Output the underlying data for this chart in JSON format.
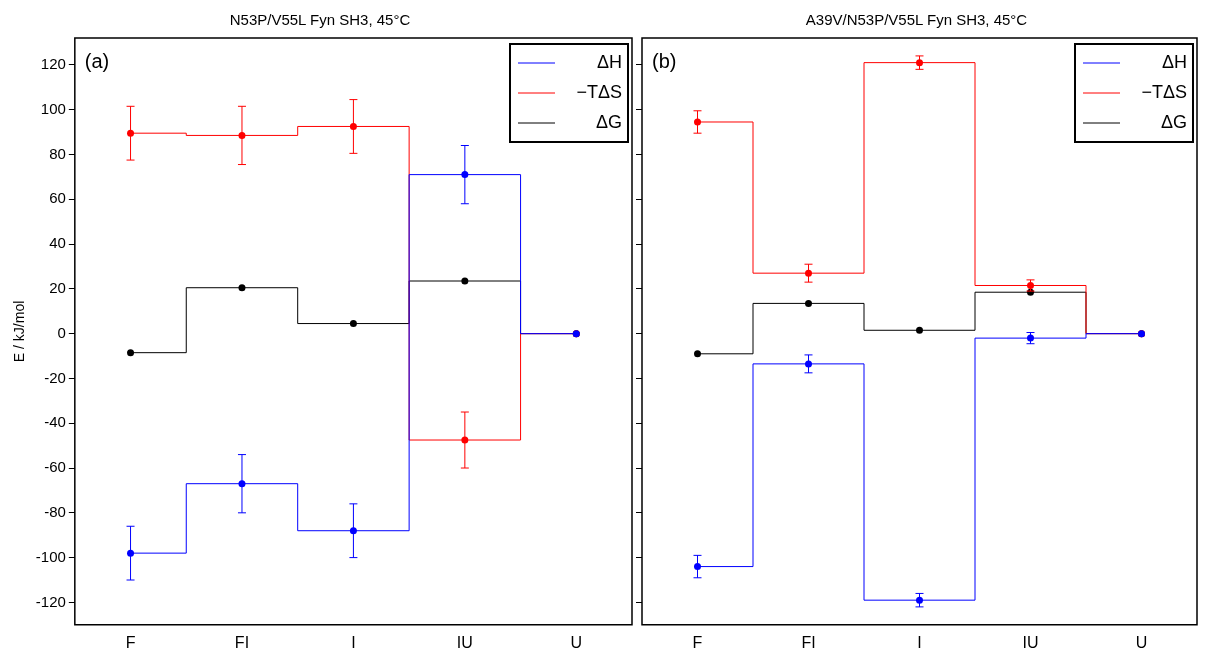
{
  "chart_data": [
    {
      "type": "step",
      "title": "N53P/V55L Fyn SH3, 45°C",
      "ylabel": "E / kJ/mol",
      "categories": [
        "F",
        "FI",
        "I",
        "IU",
        "U"
      ],
      "ylim": [
        -130,
        132
      ],
      "yticks": [
        -120,
        -100,
        -80,
        -60,
        -40,
        -20,
        0,
        20,
        40,
        60,
        80,
        100,
        120
      ],
      "grid": false,
      "legend": "top right",
      "marker": "circle",
      "line_style": "solid",
      "annotations": [
        "(a)"
      ],
      "series": [
        {
          "name": "ΔH",
          "color": "#0000ff",
          "values": [
            -98,
            -67,
            -88,
            71,
            0
          ],
          "errors": [
            12,
            13,
            12,
            13,
            null
          ]
        },
        {
          "name": "−TΔS",
          "color": "#ff0000",
          "values": [
            89.5,
            88.5,
            92.5,
            -47.5,
            0
          ],
          "errors": [
            12,
            13,
            12,
            12.5,
            null
          ]
        },
        {
          "name": "ΔG",
          "color": "#000000",
          "values": [
            -8.5,
            20.5,
            4.5,
            23.5,
            0
          ]
        }
      ]
    },
    {
      "type": "step",
      "title": "A39V/N53P/V55L Fyn SH3, 45°C",
      "categories": [
        "F",
        "FI",
        "I",
        "IU",
        "U"
      ],
      "ylim": [
        -130,
        132
      ],
      "yticks": [
        -120,
        -100,
        -80,
        -60,
        -40,
        -20,
        0,
        20,
        40,
        60,
        80,
        100,
        120
      ],
      "tick_labels": "x",
      "grid": false,
      "legend": "top right",
      "marker": "circle",
      "line_style": "solid",
      "annotations": [
        "(b)"
      ],
      "series": [
        {
          "name": "ΔH",
          "color": "#0000ff",
          "values": [
            -104,
            -13.5,
            -119,
            -2,
            0
          ],
          "errors": [
            5,
            4,
            3,
            2.5,
            null
          ]
        },
        {
          "name": "−TΔS",
          "color": "#ff0000",
          "values": [
            94.5,
            27,
            121,
            21.5,
            0
          ],
          "errors": [
            5,
            4,
            3,
            2.5,
            null
          ]
        },
        {
          "name": "ΔG",
          "color": "#000000",
          "values": [
            -9,
            13.5,
            1.5,
            18.5,
            0
          ]
        }
      ]
    }
  ]
}
